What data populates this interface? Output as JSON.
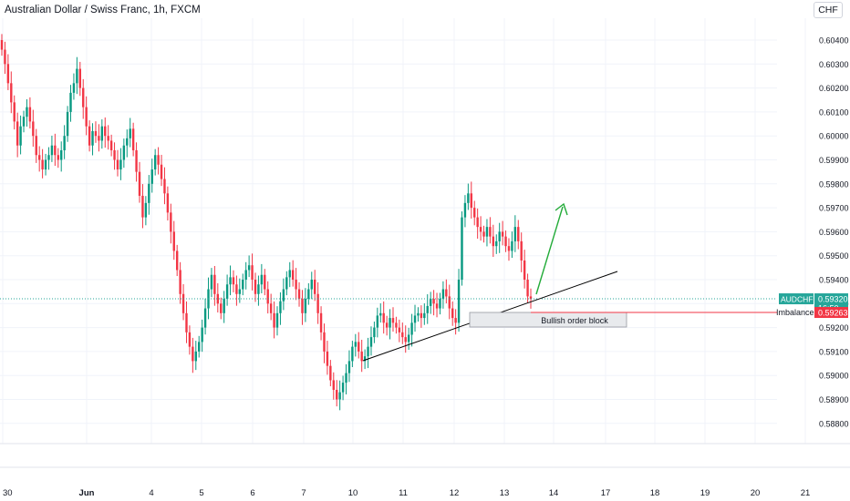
{
  "title": "Australian Dollar / Swiss Franc, 1h, FXCM",
  "currency_button": "CHF",
  "colors": {
    "up": "#089981",
    "down": "#f23645",
    "accent": "#26a69a",
    "trendline": "#000000",
    "arrow": "#22ab38",
    "imbalance": "#f23645",
    "grid": "#f0f3fa"
  },
  "chart_data": {
    "type": "candlestick",
    "symbol": "AUDCHF",
    "timeframe": "1h",
    "ylim": [
      0.5874,
      0.6047
    ],
    "y_ticks": [
      "0.60400",
      "0.60300",
      "0.60200",
      "0.60100",
      "0.60000",
      "0.59900",
      "0.59800",
      "0.59700",
      "0.59600",
      "0.59500",
      "0.59400",
      "0.59300",
      "0.59200",
      "0.59100",
      "0.59000",
      "0.58900",
      "0.58800"
    ],
    "x_ticks": [
      "30",
      "Jun",
      "4",
      "5",
      "6",
      "7",
      "10",
      "11",
      "12",
      "13",
      "14",
      "17",
      "18",
      "19",
      "20",
      "21"
    ],
    "last_price": "0.59320",
    "countdown": "16:50",
    "level_price": "0.59263",
    "level_label": "Imbalance",
    "order_block_label": "Bullish order block",
    "closes": [
      0.6036,
      0.603,
      0.6022,
      0.6014,
      0.6006,
      0.5996,
      0.6004,
      0.6008,
      0.6012,
      0.6006,
      0.6,
      0.5992,
      0.599,
      0.5986,
      0.599,
      0.5992,
      0.5996,
      0.5992,
      0.599,
      0.5994,
      0.6,
      0.601,
      0.6018,
      0.6022,
      0.6028,
      0.602,
      0.6012,
      0.6004,
      0.5996,
      0.6002,
      0.6,
      0.5998,
      0.6004,
      0.6,
      0.5998,
      0.5994,
      0.599,
      0.5986,
      0.599,
      0.5996,
      0.5999,
      0.6003,
      0.5994,
      0.5985,
      0.5975,
      0.5966,
      0.5972,
      0.598,
      0.5986,
      0.5992,
      0.5988,
      0.5982,
      0.5976,
      0.5968,
      0.596,
      0.5952,
      0.5944,
      0.5934,
      0.5926,
      0.5918,
      0.5912,
      0.5906,
      0.591,
      0.5914,
      0.592,
      0.5928,
      0.5936,
      0.5942,
      0.5934,
      0.593,
      0.5926,
      0.5932,
      0.5938,
      0.5941,
      0.5938,
      0.5934,
      0.5936,
      0.594,
      0.5944,
      0.5946,
      0.594,
      0.5934,
      0.5938,
      0.5942,
      0.5936,
      0.593,
      0.5926,
      0.592,
      0.5926,
      0.5931,
      0.5936,
      0.5941,
      0.5944,
      0.594,
      0.5936,
      0.5932,
      0.5926,
      0.5932,
      0.5936,
      0.594,
      0.5934,
      0.5926,
      0.5918,
      0.591,
      0.5904,
      0.5898,
      0.5894,
      0.589,
      0.5893,
      0.5897,
      0.5901,
      0.5906,
      0.5912,
      0.5914,
      0.591,
      0.5906,
      0.5908,
      0.5912,
      0.5916,
      0.592,
      0.5925,
      0.5926,
      0.5922,
      0.592,
      0.5924,
      0.5922,
      0.592,
      0.5918,
      0.5916,
      0.5914,
      0.5917,
      0.5922,
      0.5925,
      0.5926,
      0.5924,
      0.5926,
      0.5929,
      0.5932,
      0.593,
      0.5928,
      0.5932,
      0.5936,
      0.5933,
      0.5928,
      0.5924,
      0.5922,
      0.594,
      0.5966,
      0.5972,
      0.5976,
      0.597,
      0.5966,
      0.5962,
      0.596,
      0.5958,
      0.5962,
      0.5958,
      0.5954,
      0.5956,
      0.596,
      0.5958,
      0.5954,
      0.5952,
      0.5956,
      0.5962,
      0.5956,
      0.5948,
      0.594,
      0.5933,
      0.5932
    ]
  }
}
